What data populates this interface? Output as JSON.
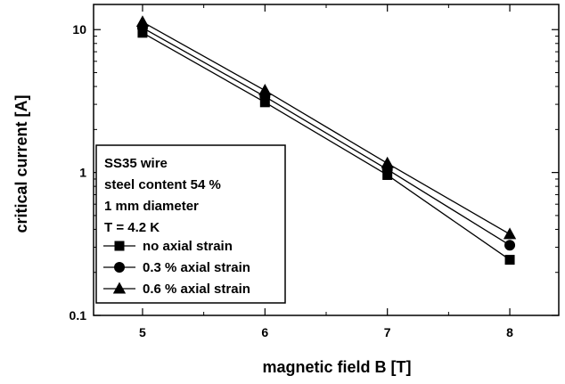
{
  "chart_data": {
    "type": "line",
    "xlabel": "magnetic field B [T]",
    "ylabel": "critical current [A]",
    "yscale": "log",
    "xlim": [
      4.6,
      8.4
    ],
    "ylim": [
      0.1,
      15
    ],
    "x_ticks": [
      "5",
      "6",
      "7",
      "8"
    ],
    "y_ticks": [
      "0.1",
      "1",
      "10"
    ],
    "grid": false,
    "legend_position": "lower-left",
    "annotations": [
      "SS35 wire",
      "steel content 54 %",
      "1 mm diameter",
      "T = 4.2 K"
    ],
    "series": [
      {
        "name": "no axial strain",
        "marker": "square",
        "x": [
          5,
          6,
          7,
          8
        ],
        "y": [
          9.5,
          3.1,
          0.96,
          0.245
        ]
      },
      {
        "name": "0.3 % axial strain",
        "marker": "circle",
        "x": [
          5,
          6,
          7,
          8
        ],
        "y": [
          10.3,
          3.4,
          1.05,
          0.31
        ]
      },
      {
        "name": "0.6 % axial strain",
        "marker": "triangle",
        "x": [
          5,
          6,
          7,
          8
        ],
        "y": [
          11.3,
          3.75,
          1.16,
          0.37
        ]
      }
    ]
  }
}
